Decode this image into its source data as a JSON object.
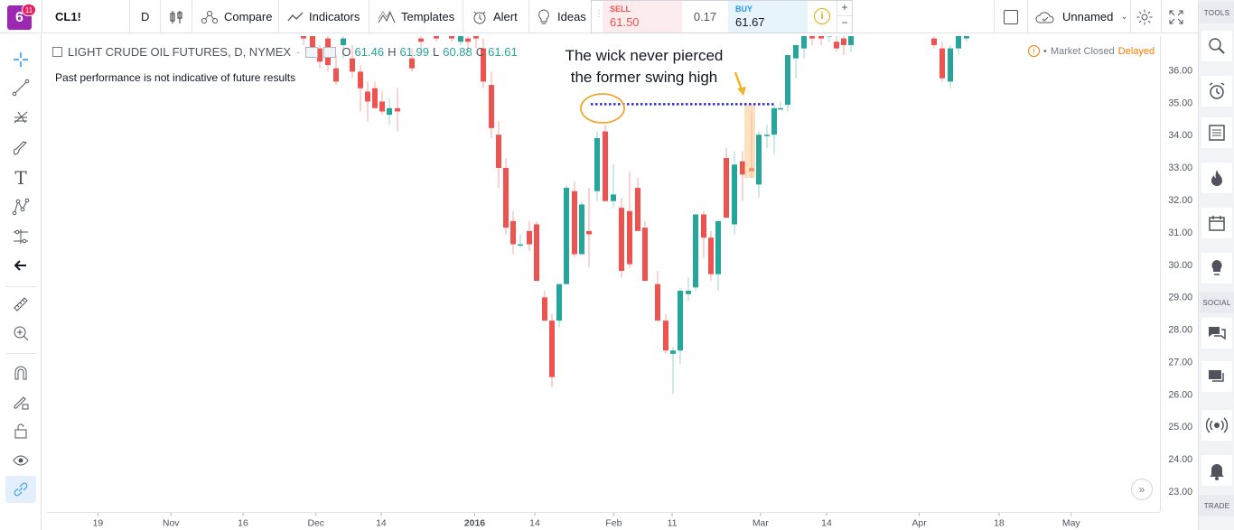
{
  "toolbar": {
    "symbol": "CL1!",
    "interval": "D",
    "compare_label": "Compare",
    "indicators_label": "Indicators",
    "templates_label": "Templates",
    "alert_label": "Alert",
    "ideas_label": "Ideas",
    "layout_name": "Unnamed",
    "logo_badge": "11"
  },
  "trade": {
    "sell_label": "SELL",
    "sell_price": "61.50",
    "spread": "0.17",
    "buy_label": "BUY",
    "buy_price": "61.67"
  },
  "legend": {
    "title": "LIGHT CRUDE OIL FUTURES, D, NYMEX",
    "o_label": "O",
    "o_value": "61.46",
    "h_label": "H",
    "h_value": "61.99",
    "l_label": "L",
    "l_value": "60.88",
    "c_label": "C",
    "c_value": "61.61"
  },
  "disclaimer": "Past performance is not indicative of future results",
  "market_status": {
    "closed": "Market Closed",
    "delayed": "Delayed"
  },
  "annotation": {
    "line1": "The wick never pierced",
    "line2": "the former swing high"
  },
  "right_sidebar": {
    "tools_label": "TOOLS",
    "social_label": "SOCIAL",
    "trade_label": "TRADE"
  },
  "colors": {
    "up": "#26a69a",
    "down": "#ef5350",
    "annotation_line": "#2a2ad6",
    "circle": "#f0a830",
    "highlight": "#f7c98b",
    "arrow": "#f0b429"
  },
  "icons": [
    "logo-icon",
    "candles-icon",
    "compare-icon",
    "indicators-icon",
    "templates-icon",
    "alert-icon",
    "ideas-icon",
    "info-icon",
    "checkbox-icon",
    "cloud-icon",
    "gear-icon",
    "fullscreen-icon",
    "crosshair-icon",
    "trendline-icon",
    "fib-icon",
    "brush-icon",
    "text-icon",
    "pattern-icon",
    "measure-icon",
    "back-arrow-icon",
    "ruler-icon",
    "zoom-icon",
    "magnet-icon",
    "lock-drawing-icon",
    "lock-icon",
    "eye-icon",
    "link-icon",
    "search-icon",
    "alarm-icon",
    "list-icon",
    "fire-icon",
    "calendar-icon",
    "bulb-icon",
    "chat-icon",
    "message-icon",
    "broadcast-icon",
    "bell-icon"
  ],
  "chart_data": {
    "type": "candlestick",
    "price_axis": [
      "36.00",
      "35.00",
      "34.00",
      "33.00",
      "32.00",
      "31.00",
      "30.00",
      "29.00",
      "28.00",
      "27.00",
      "26.00",
      "25.00",
      "24.00",
      "23.00"
    ],
    "time_axis": [
      "19",
      "Nov",
      "16",
      "Dec",
      "14",
      "2016",
      "14",
      "Feb",
      "11",
      "Mar",
      "14",
      "Apr",
      "18",
      "May"
    ],
    "ylim": [
      22.6,
      36.9
    ],
    "swing_high_level": 34.82
  }
}
